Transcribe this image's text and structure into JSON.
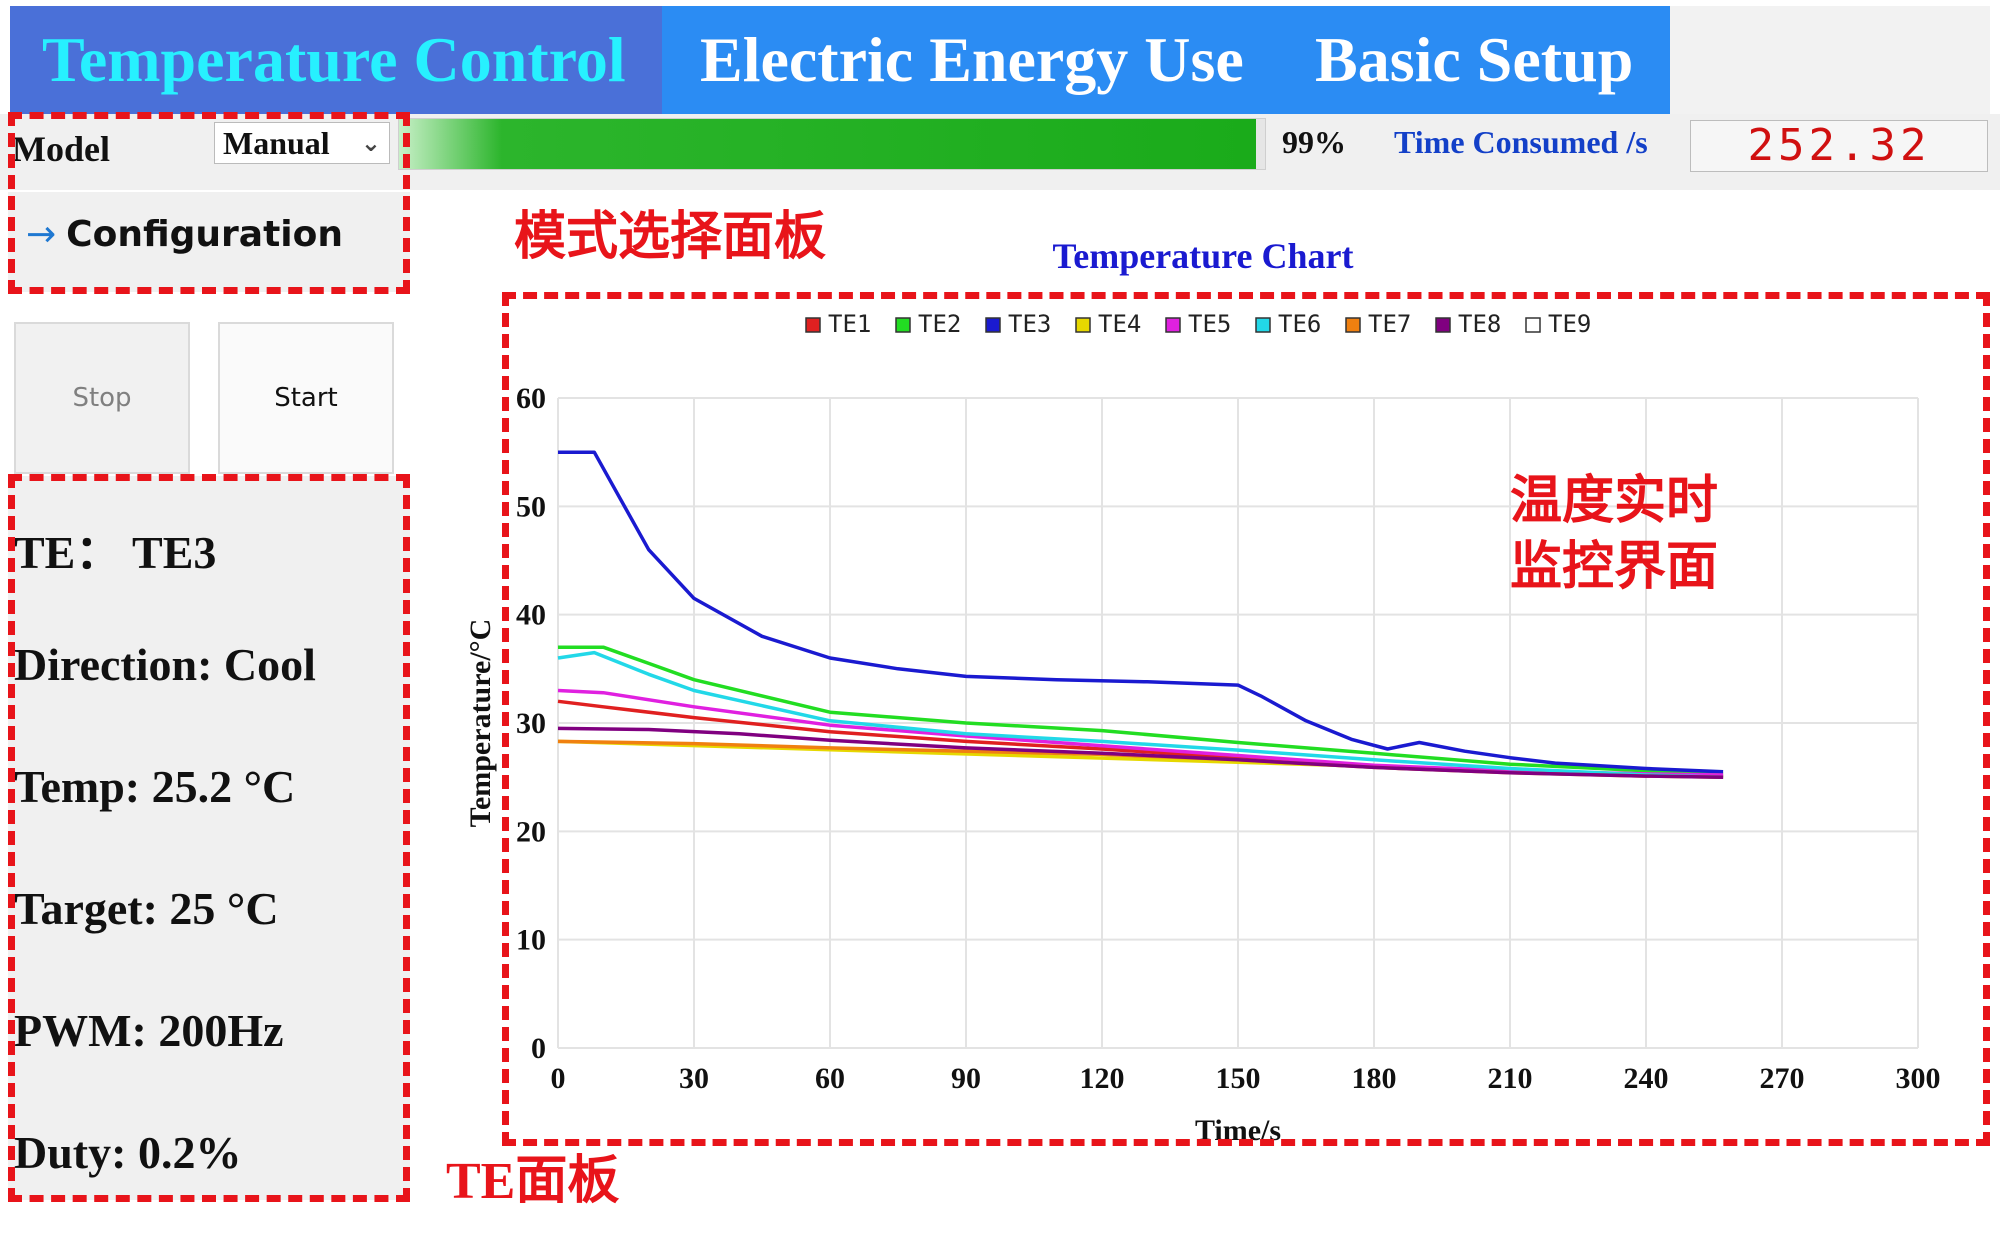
{
  "tabs": [
    {
      "label": "Temperature Control",
      "active": true
    },
    {
      "label": "Electric Energy Use",
      "active": false
    },
    {
      "label": "Basic Setup",
      "active": false
    }
  ],
  "status": {
    "mode_label": "Model",
    "mode_value": "Manual",
    "progress_percent": 99,
    "progress_text": "99%",
    "time_label": "Time Consumed /s",
    "time_value": "252.32"
  },
  "config": {
    "label": "Configuration"
  },
  "buttons": {
    "stop": "Stop",
    "start": "Start"
  },
  "te_panel": {
    "te": "TE：  TE3",
    "direction": "Direction: Cool",
    "temp": "Temp:  25.2 °C",
    "target": "Target:  25 °C",
    "pwm": "PWM:  200Hz",
    "duty": "Duty: 0.2%"
  },
  "annotations": {
    "mode_panel": "模式选择面板",
    "monitor_line1": "温度实时",
    "monitor_line2": "监控界面",
    "te_panel": "TE面板"
  },
  "colors": {
    "accent_tab": "#2b8cf3",
    "active_tab": "#4a70d8",
    "active_tab_text": "#27f0ff",
    "annotation_red": "#e8141a",
    "progress_green": "#1aab1a"
  },
  "chart_data": {
    "type": "line",
    "title": "Temperature Chart",
    "xlabel": "Time/s",
    "ylabel": "Temperature/°C",
    "xlim": [
      0,
      300
    ],
    "ylim": [
      0,
      60
    ],
    "xticks": [
      0,
      30,
      60,
      90,
      120,
      150,
      180,
      210,
      240,
      270,
      300
    ],
    "yticks": [
      0,
      10,
      20,
      30,
      40,
      50,
      60
    ],
    "grid": true,
    "legend_position": "top",
    "series": [
      {
        "name": "TE1",
        "color": "#e02020",
        "x": [
          0,
          10,
          30,
          60,
          90,
          120,
          150,
          180,
          210,
          240,
          257
        ],
        "y": [
          32,
          31.5,
          30.5,
          29.2,
          28.3,
          27.6,
          26.8,
          26.0,
          25.6,
          25.2,
          25.1
        ]
      },
      {
        "name": "TE2",
        "color": "#22dd22",
        "x": [
          0,
          10,
          20,
          30,
          60,
          90,
          120,
          150,
          180,
          210,
          240,
          257
        ],
        "y": [
          37,
          37,
          35.5,
          34,
          31,
          30,
          29.3,
          28.2,
          27.2,
          26.2,
          25.6,
          25.3
        ]
      },
      {
        "name": "TE3",
        "color": "#1a1ad0",
        "x": [
          0,
          5,
          8,
          12,
          20,
          30,
          45,
          60,
          75,
          90,
          110,
          130,
          150,
          155,
          165,
          175,
          183,
          190,
          200,
          210,
          220,
          240,
          257
        ],
        "y": [
          55,
          55,
          55,
          52,
          46,
          41.5,
          38,
          36,
          35,
          34.3,
          34,
          33.8,
          33.5,
          32.5,
          30.2,
          28.5,
          27.6,
          28.2,
          27.4,
          26.8,
          26.3,
          25.8,
          25.5
        ]
      },
      {
        "name": "TE4",
        "color": "#e6d800",
        "x": [
          0,
          257
        ],
        "y": [
          28.3,
          25.0
        ]
      },
      {
        "name": "TE5",
        "color": "#e020e0",
        "x": [
          0,
          10,
          30,
          60,
          90,
          120,
          150,
          180,
          210,
          240,
          257
        ],
        "y": [
          33,
          32.8,
          31.5,
          29.8,
          28.8,
          27.9,
          27.0,
          26.1,
          25.6,
          25.3,
          25.2
        ]
      },
      {
        "name": "TE6",
        "color": "#22d8e8",
        "x": [
          0,
          8,
          20,
          30,
          60,
          90,
          120,
          150,
          180,
          210,
          240,
          257
        ],
        "y": [
          36,
          36.5,
          34.5,
          33,
          30.2,
          29,
          28.3,
          27.5,
          26.6,
          25.8,
          25.2,
          25.0
        ]
      },
      {
        "name": "TE7",
        "color": "#f08010",
        "x": [
          0,
          30,
          60,
          90,
          120,
          150,
          180,
          210,
          240,
          257
        ],
        "y": [
          28.3,
          28.1,
          27.7,
          27.4,
          27.1,
          26.6,
          25.9,
          25.4,
          25.1,
          25.0
        ]
      },
      {
        "name": "TE8",
        "color": "#800080",
        "x": [
          0,
          20,
          40,
          60,
          90,
          120,
          150,
          180,
          210,
          240,
          257
        ],
        "y": [
          29.5,
          29.4,
          29.0,
          28.4,
          27.7,
          27.2,
          26.6,
          25.9,
          25.4,
          25.1,
          25.0
        ]
      },
      {
        "name": "TE9",
        "color": "#ffffff",
        "x": [],
        "y": []
      }
    ]
  }
}
